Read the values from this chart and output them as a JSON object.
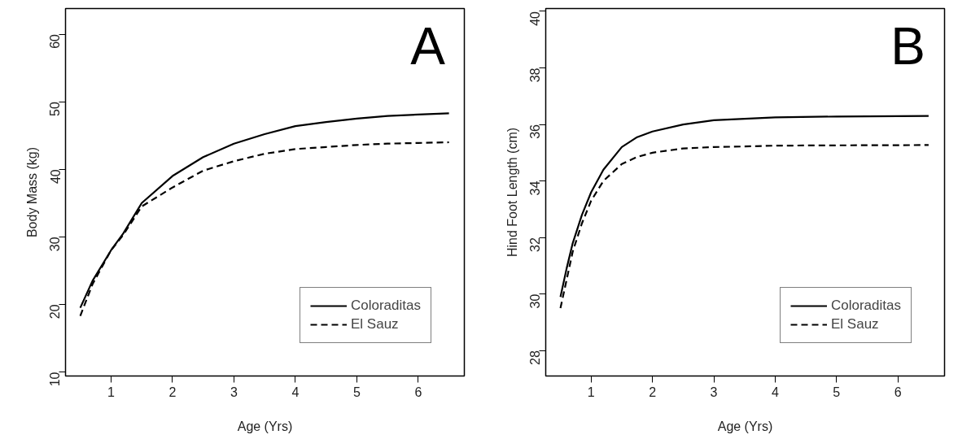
{
  "chart_data": [
    {
      "type": "line",
      "xlabel": "Age (Yrs)",
      "ylabel": "Body Mass (kg)",
      "annotations": [
        "A"
      ],
      "xlim": [
        0.26,
        6.75
      ],
      "ylim": [
        9.4,
        63.8
      ],
      "xticks": [
        1,
        2,
        3,
        4,
        5,
        6
      ],
      "yticks": [
        10,
        20,
        30,
        40,
        50,
        60
      ],
      "grid": false,
      "legend": "bottom right",
      "series": [
        {
          "name": "Coloraditas",
          "color": "#000000",
          "line_style": "solid",
          "x": [
            0.5,
            0.7,
            1,
            1.2,
            1.5,
            2,
            2.5,
            3,
            3.5,
            4,
            4.5,
            5,
            5.5,
            6,
            6.5
          ],
          "values": [
            19.5,
            23.5,
            28,
            30.5,
            35,
            39,
            41.8,
            43.8,
            45.2,
            46.4,
            47,
            47.5,
            47.9,
            48.1,
            48.3
          ]
        },
        {
          "name": "El Sauz",
          "color": "#000000",
          "line_style": "dashed",
          "x": [
            0.5,
            0.7,
            1,
            1.2,
            1.5,
            2,
            2.5,
            3,
            3.5,
            4,
            4.5,
            5,
            5.5,
            6,
            6.5
          ],
          "values": [
            18.3,
            23,
            28,
            30.3,
            34.5,
            37.3,
            39.8,
            41.2,
            42.3,
            43,
            43.3,
            43.6,
            43.8,
            43.9,
            44
          ]
        }
      ]
    },
    {
      "type": "line",
      "xlabel": "Age (Yrs)",
      "ylabel": "Hind Foot Length (cm)",
      "annotations": [
        "B"
      ],
      "xlim": [
        0.26,
        6.76
      ],
      "ylim": [
        27.1,
        40.1
      ],
      "xticks": [
        1,
        2,
        3,
        4,
        5,
        6
      ],
      "yticks": [
        28,
        30,
        32,
        34,
        36,
        38,
        40
      ],
      "grid": false,
      "legend": "bottom right",
      "series": [
        {
          "name": "Coloraditas",
          "color": "#000000",
          "line_style": "solid",
          "x": [
            0.5,
            0.6,
            0.7,
            0.85,
            1,
            1.2,
            1.5,
            1.75,
            2,
            2.5,
            3,
            3.5,
            4,
            5,
            6.5
          ],
          "values": [
            29.9,
            30.9,
            31.8,
            32.8,
            33.6,
            34.4,
            35.2,
            35.55,
            35.75,
            36.0,
            36.15,
            36.2,
            36.25,
            36.28,
            36.3
          ]
        },
        {
          "name": "El Sauz",
          "color": "#000000",
          "line_style": "dashed",
          "x": [
            0.5,
            0.6,
            0.7,
            0.85,
            1,
            1.2,
            1.5,
            1.75,
            2,
            2.5,
            3,
            3.5,
            4,
            5,
            6.5
          ],
          "values": [
            29.5,
            30.5,
            31.5,
            32.5,
            33.3,
            34.0,
            34.6,
            34.85,
            35.0,
            35.15,
            35.2,
            35.22,
            35.25,
            35.26,
            35.27
          ]
        }
      ]
    }
  ]
}
